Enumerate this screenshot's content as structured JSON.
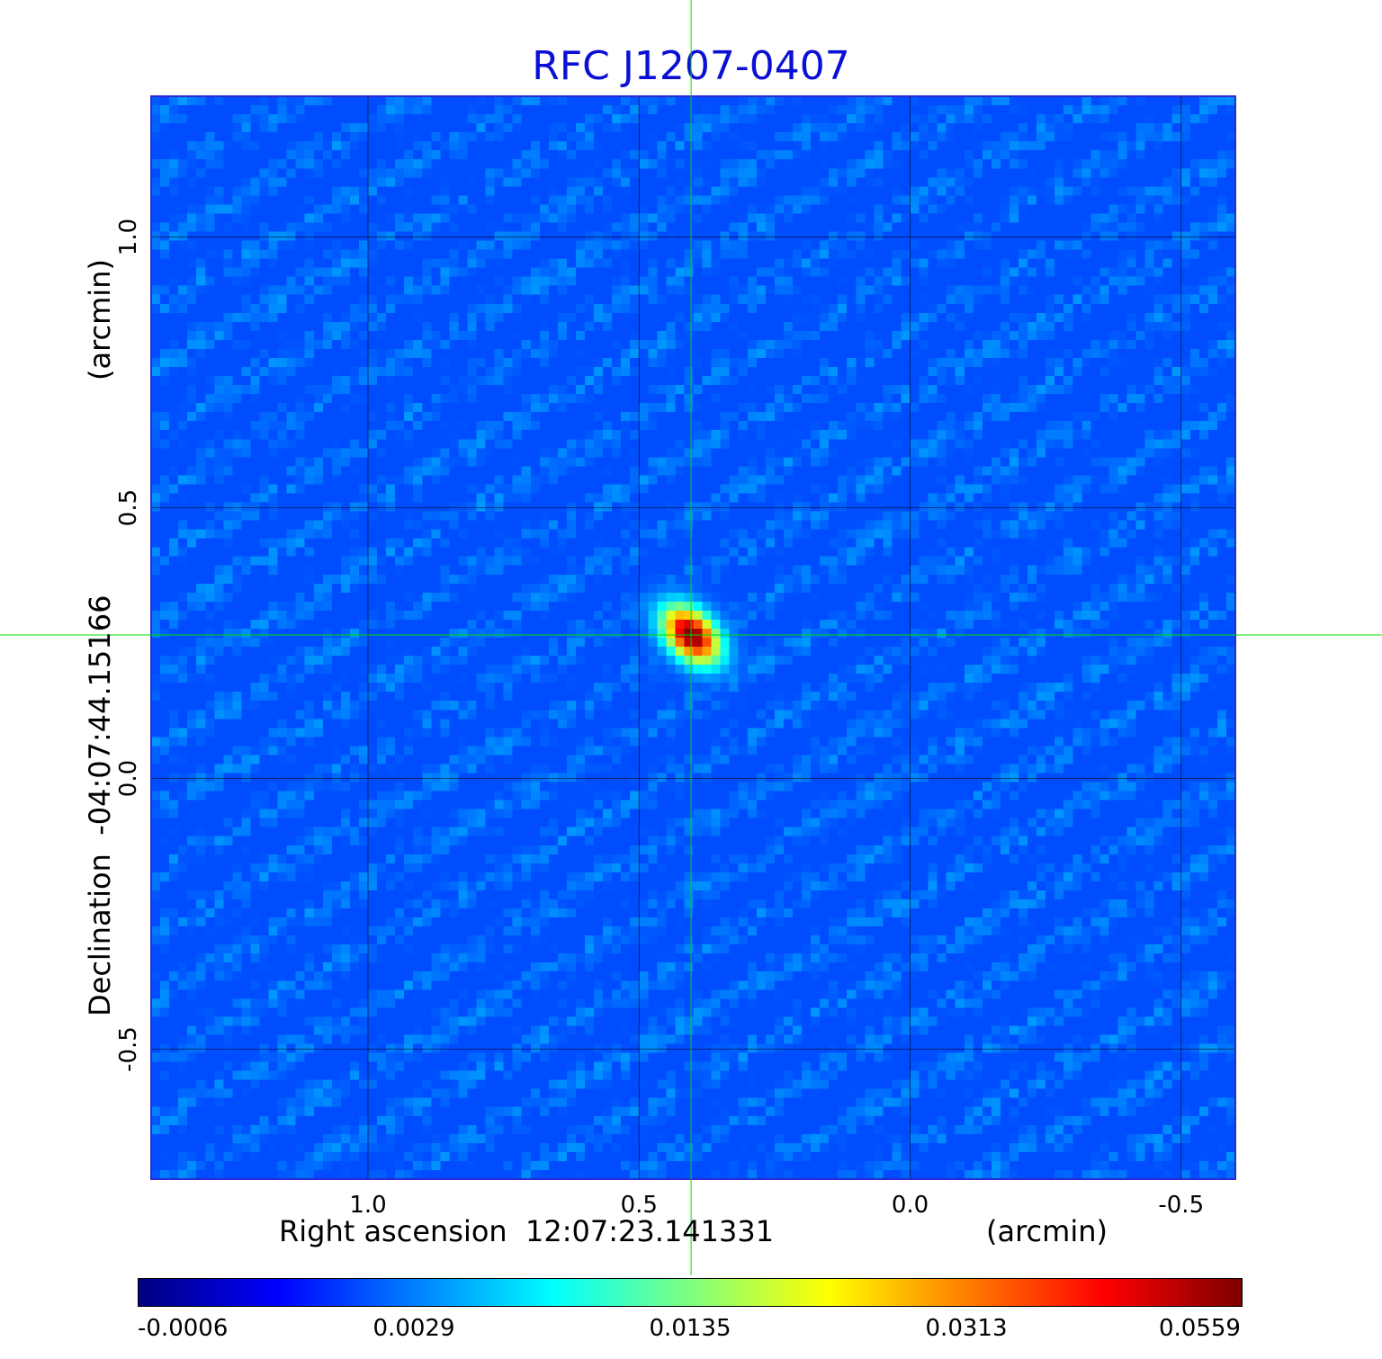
{
  "chart_data": {
    "type": "heatmap",
    "title": "RFC J1207-0407",
    "xlabel": "Right ascension  12:07:23.141331",
    "xunit": "(arcmin)",
    "ylabel": "Declination  -04:07:44.15166",
    "yunit": "(arcmin)",
    "xlim": [
      1.4,
      -0.6
    ],
    "ylim": [
      -0.74,
      1.26
    ],
    "x_ticks": [
      {
        "value": 1.0,
        "label": "1.0"
      },
      {
        "value": 0.5,
        "label": "0.5"
      },
      {
        "value": 0.0,
        "label": "0.0"
      },
      {
        "value": -0.5,
        "label": "-0.5"
      }
    ],
    "y_ticks": [
      {
        "value": 1.0,
        "label": "1.0"
      },
      {
        "value": 0.5,
        "label": "0.5"
      },
      {
        "value": 0.0,
        "label": "0.0"
      },
      {
        "value": -0.5,
        "label": "-0.5"
      }
    ],
    "grid": true,
    "crosshair": {
      "x": 0.404,
      "y": 0.265
    },
    "source_peak": {
      "x": 0.404,
      "y": 0.265,
      "value": 0.0559
    },
    "colormap": "jet",
    "colorbar": {
      "ticks": [
        "-0.0006",
        "0.0029",
        "0.0135",
        "0.0313",
        "0.0559"
      ],
      "range": [
        -0.0006,
        0.0559
      ]
    }
  },
  "colors": {
    "title": "#0b0fd6",
    "grid": "#000000",
    "crosshair": "#00dd00"
  }
}
